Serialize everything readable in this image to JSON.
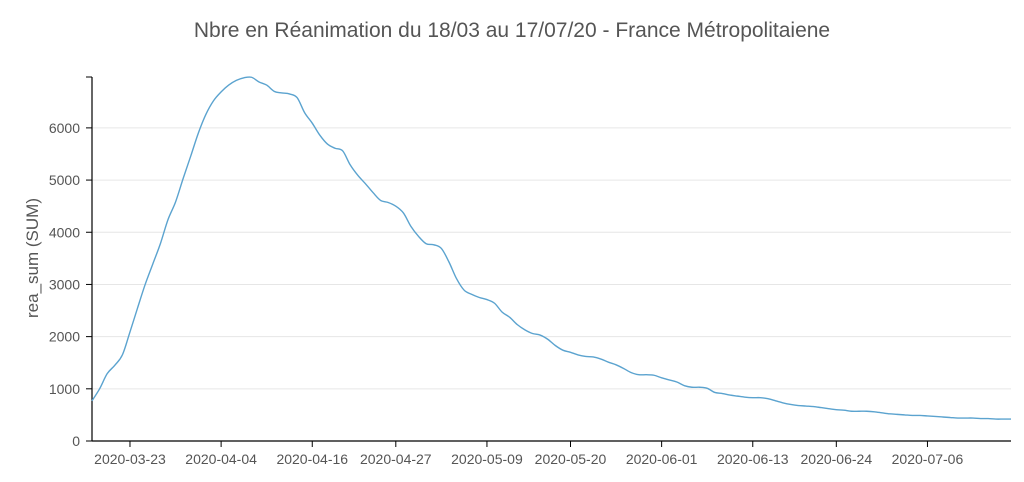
{
  "chart_data": {
    "type": "line",
    "title": "Nbre en Réanimation du 18/03 au 17/07/20 - France Métropolitaiene",
    "xlabel": "",
    "ylabel": "rea_sum (SUM)",
    "ylim": [
      0,
      7000
    ],
    "y_ticks": [
      "0",
      "1000",
      "2000",
      "3000",
      "4000",
      "5000",
      "6000"
    ],
    "x_ticks": [
      "2020-03-23",
      "2020-04-04",
      "2020-04-16",
      "2020-04-27",
      "2020-05-09",
      "2020-05-20",
      "2020-06-01",
      "2020-06-13",
      "2020-06-24",
      "2020-07-06"
    ],
    "x_range": [
      "2020-03-18",
      "2020-07-17"
    ],
    "grid": true,
    "line_color": "#5ba3cf",
    "series": [
      {
        "x": [
          "2020-03-18",
          "2020-03-19",
          "2020-03-20",
          "2020-03-21",
          "2020-03-22",
          "2020-03-23",
          "2020-03-24",
          "2020-03-25",
          "2020-03-26",
          "2020-03-27",
          "2020-03-28",
          "2020-03-29",
          "2020-03-30",
          "2020-03-31",
          "2020-04-01",
          "2020-04-02",
          "2020-04-03",
          "2020-04-04",
          "2020-04-05",
          "2020-04-06",
          "2020-04-07",
          "2020-04-08",
          "2020-04-09",
          "2020-04-10",
          "2020-04-11",
          "2020-04-12",
          "2020-04-13",
          "2020-04-14",
          "2020-04-15",
          "2020-04-16",
          "2020-04-17",
          "2020-04-18",
          "2020-04-19",
          "2020-04-20",
          "2020-04-21",
          "2020-04-22",
          "2020-04-23",
          "2020-04-24",
          "2020-04-25",
          "2020-04-26",
          "2020-04-27",
          "2020-04-28",
          "2020-04-29",
          "2020-04-30",
          "2020-05-01",
          "2020-05-02",
          "2020-05-03",
          "2020-05-04",
          "2020-05-05",
          "2020-05-06",
          "2020-05-07",
          "2020-05-08",
          "2020-05-09",
          "2020-05-10",
          "2020-05-11",
          "2020-05-12",
          "2020-05-13",
          "2020-05-14",
          "2020-05-15",
          "2020-05-16",
          "2020-05-17",
          "2020-05-18",
          "2020-05-19",
          "2020-05-20",
          "2020-05-21",
          "2020-05-22",
          "2020-05-23",
          "2020-05-24",
          "2020-05-25",
          "2020-05-26",
          "2020-05-27",
          "2020-05-28",
          "2020-05-29",
          "2020-05-30",
          "2020-05-31",
          "2020-06-01",
          "2020-06-02",
          "2020-06-03",
          "2020-06-04",
          "2020-06-05",
          "2020-06-06",
          "2020-06-07",
          "2020-06-08",
          "2020-06-09",
          "2020-06-10",
          "2020-06-11",
          "2020-06-12",
          "2020-06-13",
          "2020-06-14",
          "2020-06-15",
          "2020-06-16",
          "2020-06-17",
          "2020-06-18",
          "2020-06-19",
          "2020-06-20",
          "2020-06-21",
          "2020-06-22",
          "2020-06-23",
          "2020-06-24",
          "2020-06-25",
          "2020-06-26",
          "2020-06-27",
          "2020-06-28",
          "2020-06-29",
          "2020-06-30",
          "2020-07-01",
          "2020-07-02",
          "2020-07-03",
          "2020-07-04",
          "2020-07-05",
          "2020-07-06",
          "2020-07-07",
          "2020-07-08",
          "2020-07-09",
          "2020-07-10",
          "2020-07-11",
          "2020-07-12",
          "2020-07-13",
          "2020-07-14",
          "2020-07-15",
          "2020-07-16",
          "2020-07-17"
        ],
        "y": [
          770,
          1000,
          1290,
          1450,
          1650,
          2090,
          2550,
          3000,
          3390,
          3780,
          4240,
          4580,
          5030,
          5460,
          5900,
          6260,
          6520,
          6690,
          6820,
          6910,
          6960,
          6970,
          6880,
          6820,
          6700,
          6670,
          6650,
          6580,
          6290,
          6090,
          5860,
          5690,
          5610,
          5560,
          5290,
          5090,
          4930,
          4760,
          4610,
          4570,
          4500,
          4370,
          4110,
          3920,
          3780,
          3760,
          3690,
          3430,
          3110,
          2890,
          2810,
          2750,
          2710,
          2640,
          2470,
          2370,
          2230,
          2130,
          2060,
          2030,
          1950,
          1830,
          1740,
          1700,
          1650,
          1620,
          1610,
          1570,
          1510,
          1460,
          1390,
          1310,
          1270,
          1270,
          1260,
          1210,
          1170,
          1130,
          1060,
          1030,
          1030,
          1010,
          930,
          910,
          880,
          860,
          840,
          830,
          830,
          810,
          770,
          730,
          700,
          680,
          670,
          660,
          640,
          620,
          600,
          590,
          570,
          570,
          570,
          560,
          540,
          520,
          510,
          500,
          490,
          490,
          480,
          470,
          460,
          450,
          440,
          440,
          440,
          430,
          430,
          420,
          420,
          420
        ]
      }
    ]
  }
}
